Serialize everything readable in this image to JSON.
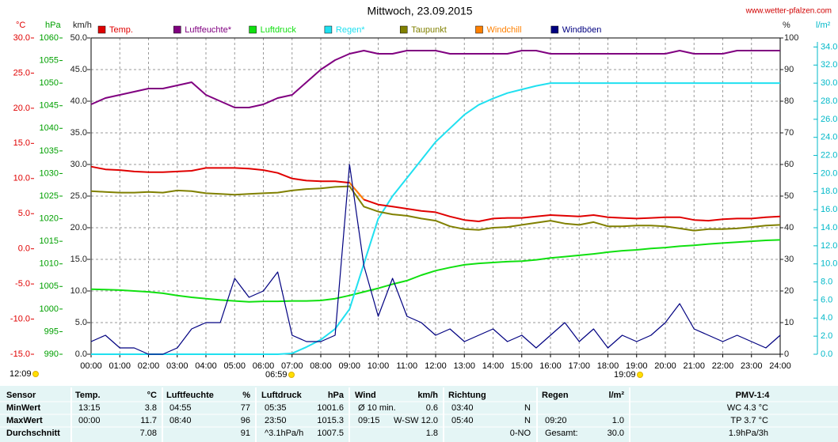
{
  "chart_data": {
    "type": "line",
    "title": "Mittwoch, 23.09.2015",
    "source": "www.wetter-pfalzen.com",
    "xlim": [
      0,
      24
    ],
    "xticks": [
      {
        "value": 0,
        "label": "00:00"
      },
      {
        "value": 1,
        "label": "01:00"
      },
      {
        "value": 2,
        "label": "02:00"
      },
      {
        "value": 3,
        "label": "03:00"
      },
      {
        "value": 4,
        "label": "04:00"
      },
      {
        "value": 5,
        "label": "05:00"
      },
      {
        "value": 6,
        "label": "06:00"
      },
      {
        "value": 7,
        "label": "07:00"
      },
      {
        "value": 8,
        "label": "08:00"
      },
      {
        "value": 9,
        "label": "09:00"
      },
      {
        "value": 10,
        "label": "10:00"
      },
      {
        "value": 11,
        "label": "11:00"
      },
      {
        "value": 12,
        "label": "12:00"
      },
      {
        "value": 13,
        "label": "13:00"
      },
      {
        "value": 14,
        "label": "14:00"
      },
      {
        "value": 15,
        "label": "15:00"
      },
      {
        "value": 16,
        "label": "16:00"
      },
      {
        "value": 17,
        "label": "17:00"
      },
      {
        "value": 18,
        "label": "18:00"
      },
      {
        "value": 19,
        "label": "19:00"
      },
      {
        "value": 20,
        "label": "20:00"
      },
      {
        "value": 21,
        "label": "21:00"
      },
      {
        "value": 22,
        "label": "22:00"
      },
      {
        "value": 23,
        "label": "23:00"
      },
      {
        "value": 24,
        "label": "24:00"
      }
    ],
    "grid": true,
    "y_axes": {
      "y": {
        "label": "°C",
        "color": "#e00000",
        "lim": [
          -15,
          30
        ],
        "ticks": [
          {
            "value": -15,
            "label": "-15.0"
          },
          {
            "value": -10,
            "label": "-10.0"
          },
          {
            "value": -5,
            "label": "-5.0"
          },
          {
            "value": 0,
            "label": "0.0"
          },
          {
            "value": 5,
            "label": "5.0"
          },
          {
            "value": 10,
            "label": "10.0"
          },
          {
            "value": 15,
            "label": "15.0"
          },
          {
            "value": 20,
            "label": "20.0"
          },
          {
            "value": 25,
            "label": "25.0"
          },
          {
            "value": 30,
            "label": "30.0"
          }
        ]
      },
      "y3": {
        "label": "hPa",
        "color": "#00a000",
        "lim": [
          990,
          1060
        ],
        "ticks": [
          990,
          995,
          1000,
          1005,
          1010,
          1015,
          1020,
          1025,
          1030,
          1035,
          1040,
          1045,
          1050,
          1055,
          1060
        ]
      },
      "y4": {
        "label": "km/h",
        "color": "#202020",
        "lim": [
          0,
          50
        ],
        "ticks": [
          {
            "value": 0,
            "label": "0.0"
          },
          {
            "value": 5,
            "label": "5.0"
          },
          {
            "value": 10,
            "label": "10.0"
          },
          {
            "value": 15,
            "label": "15.0"
          },
          {
            "value": 20,
            "label": "20.0"
          },
          {
            "value": 25,
            "label": "25.0"
          },
          {
            "value": 30,
            "label": "30.0"
          },
          {
            "value": 35,
            "label": "35.0"
          },
          {
            "value": 40,
            "label": "40.0"
          },
          {
            "value": 45,
            "label": "45.0"
          },
          {
            "value": 50,
            "label": "50.0"
          }
        ]
      },
      "y2": {
        "label": "%",
        "color": "#202020",
        "lim": [
          0,
          100
        ],
        "ticks": [
          0,
          10,
          20,
          30,
          40,
          50,
          60,
          70,
          80,
          90,
          100
        ]
      },
      "y5": {
        "label": "l/m²",
        "color": "#00b8c8",
        "lim": [
          0,
          35
        ],
        "ticks": [
          {
            "value": 0,
            "label": "0.0"
          },
          {
            "value": 2,
            "label": "2.0"
          },
          {
            "value": 4,
            "label": "4.0"
          },
          {
            "value": 6,
            "label": "6.0"
          },
          {
            "value": 8,
            "label": "8.0"
          },
          {
            "value": 10,
            "label": "10.0"
          },
          {
            "value": 12,
            "label": "12.0"
          },
          {
            "value": 14,
            "label": "14.0"
          },
          {
            "value": 16,
            "label": "16.0"
          },
          {
            "value": 18,
            "label": "18.0"
          },
          {
            "value": 20,
            "label": "20.0"
          },
          {
            "value": 22,
            "label": "22.0"
          },
          {
            "value": 24,
            "label": "24.0"
          },
          {
            "value": 26,
            "label": "26.0"
          },
          {
            "value": 28,
            "label": "28.0"
          },
          {
            "value": 30,
            "label": "30.0"
          },
          {
            "value": 32,
            "label": "32.0"
          },
          {
            "value": 34,
            "label": "34.0"
          }
        ]
      }
    },
    "x": [
      0,
      0.5,
      1,
      1.5,
      2,
      2.5,
      3,
      3.5,
      4,
      4.5,
      5,
      5.5,
      6,
      6.5,
      7,
      7.5,
      8,
      8.5,
      9,
      9.5,
      10,
      10.5,
      11,
      11.5,
      12,
      12.5,
      13,
      13.5,
      14,
      14.5,
      15,
      15.5,
      16,
      16.5,
      17,
      17.5,
      18,
      18.5,
      19,
      19.5,
      20,
      20.5,
      21,
      21.5,
      22,
      22.5,
      23,
      23.5,
      24
    ],
    "series": [
      {
        "name": "Temp.",
        "color": "#e00000",
        "axis": "y",
        "values": [
          11.7,
          11.3,
          11.2,
          11.0,
          10.9,
          10.9,
          11.0,
          11.1,
          11.5,
          11.5,
          11.5,
          11.4,
          11.2,
          10.8,
          10.0,
          9.7,
          9.6,
          9.6,
          9.4,
          7.0,
          6.3,
          6.0,
          5.7,
          5.4,
          5.2,
          4.6,
          4.1,
          3.9,
          4.3,
          4.4,
          4.4,
          4.6,
          4.8,
          4.7,
          4.6,
          4.8,
          4.5,
          4.4,
          4.3,
          4.4,
          4.5,
          4.5,
          4.1,
          4.0,
          4.2,
          4.3,
          4.3,
          4.5,
          4.6
        ]
      },
      {
        "name": "Luftfeuchte*",
        "color": "#800080",
        "axis": "y2",
        "values": [
          79,
          81,
          82,
          83,
          84,
          84,
          85,
          86,
          82,
          80,
          78,
          78,
          79,
          81,
          82,
          86,
          90,
          93,
          95,
          96,
          95,
          95,
          96,
          96,
          96,
          95,
          95,
          95,
          95,
          95,
          96,
          96,
          95,
          95,
          95,
          95,
          95,
          95,
          95,
          95,
          95,
          96,
          95,
          95,
          95,
          96,
          96,
          96,
          96
        ]
      },
      {
        "name": "Luftdruck",
        "color": "#10e010",
        "axis": "y3",
        "values": [
          1004.4,
          1004.3,
          1004.2,
          1004.0,
          1003.8,
          1003.5,
          1003.0,
          1002.6,
          1002.3,
          1002.0,
          1001.8,
          1001.6,
          1001.7,
          1001.7,
          1001.8,
          1001.8,
          1001.9,
          1002.3,
          1003.0,
          1003.8,
          1004.6,
          1005.5,
          1006.3,
          1007.5,
          1008.5,
          1009.2,
          1009.8,
          1010.1,
          1010.3,
          1010.5,
          1010.6,
          1010.9,
          1011.3,
          1011.6,
          1011.9,
          1012.2,
          1012.6,
          1012.9,
          1013.1,
          1013.4,
          1013.6,
          1013.9,
          1014.1,
          1014.4,
          1014.6,
          1014.8,
          1015.0,
          1015.2,
          1015.3
        ]
      },
      {
        "name": "Regen*",
        "color": "#20e0f0",
        "axis": "y5",
        "values": [
          0,
          0,
          0,
          0,
          0,
          0,
          0,
          0,
          0,
          0,
          0,
          0,
          0,
          0,
          0.1,
          0.8,
          1.6,
          2.8,
          5.0,
          10,
          15,
          17.5,
          19.5,
          21.5,
          23.5,
          25,
          26.5,
          27.6,
          28.3,
          28.9,
          29.3,
          29.7,
          30.0,
          30.0,
          30.0,
          30.0,
          30.0,
          30.0,
          30.0,
          30.0,
          30.0,
          30.0,
          30.0,
          30.0,
          30.0,
          30.0,
          30.0,
          30.0,
          30.0
        ]
      },
      {
        "name": "Taupunkt",
        "color": "#808000",
        "axis": "y",
        "values": [
          8.2,
          8.1,
          8.0,
          8.0,
          8.1,
          8.0,
          8.3,
          8.2,
          7.9,
          7.8,
          7.7,
          7.8,
          7.9,
          8.0,
          8.3,
          8.5,
          8.6,
          8.8,
          8.9,
          6.0,
          5.3,
          4.9,
          4.7,
          4.3,
          4.0,
          3.2,
          2.8,
          2.7,
          3.0,
          3.1,
          3.4,
          3.7,
          4.0,
          3.6,
          3.4,
          3.8,
          3.2,
          3.2,
          3.3,
          3.3,
          3.2,
          2.9,
          2.6,
          2.8,
          2.8,
          2.9,
          3.1,
          3.3,
          3.4
        ]
      },
      {
        "name": "Windchill",
        "color": "#ff8000",
        "axis": "y",
        "values": [
          null,
          null,
          null,
          null,
          null,
          null,
          null,
          null,
          null,
          null,
          null,
          null,
          null,
          null,
          null,
          null,
          null,
          null,
          9.4,
          7.0,
          null,
          null,
          null,
          null,
          null,
          null,
          null,
          null,
          null,
          null,
          null,
          null,
          null,
          null,
          null,
          null,
          null,
          null,
          null,
          null,
          null,
          null,
          null,
          null,
          null,
          null,
          null,
          null,
          null
        ]
      },
      {
        "name": "Windböen",
        "color": "#000080",
        "axis": "y4",
        "values": [
          2,
          3,
          1,
          1,
          0,
          0,
          1,
          4,
          5,
          5,
          12,
          9,
          10,
          13,
          3,
          2,
          2,
          3,
          30,
          14,
          6,
          12,
          6,
          5,
          3,
          4,
          2,
          3,
          4,
          2,
          3,
          1,
          3,
          5,
          2,
          4,
          1,
          3,
          2,
          3,
          5,
          8,
          4,
          3,
          2,
          3,
          2,
          1,
          3
        ]
      }
    ],
    "sun_times": [
      "12:09",
      "06:59",
      "19:09"
    ]
  },
  "table": {
    "header": [
      [
        "Sensor"
      ],
      [
        "Temp.",
        "°C"
      ],
      [
        "Luftfeuchte",
        "%"
      ],
      [
        "Luftdruck",
        "hPa"
      ],
      [
        "Wind",
        "km/h"
      ],
      [
        "Richtung"
      ],
      [
        "Regen",
        "l/m²"
      ],
      [
        "PMV-1:4"
      ]
    ],
    "rows": [
      {
        "label": "MinWert",
        "cells": [
          [
            "13:15",
            "3.8"
          ],
          [
            "04:55",
            "77"
          ],
          [
            "05:35",
            "1001.6"
          ],
          [
            "Ø 10 min.",
            "0.6"
          ],
          [
            "03:40",
            "N"
          ],
          [],
          [
            "WC 4.3 °C"
          ]
        ]
      },
      {
        "label": "MaxWert",
        "cells": [
          [
            "00:00",
            "11.7"
          ],
          [
            "08:40",
            "96"
          ],
          [
            "23:50",
            "1015.3"
          ],
          [
            "09:15",
            "W-SW 12.0"
          ],
          [
            "05:40",
            "N"
          ],
          [
            "09:20",
            "1.0"
          ],
          [
            "TP 3.7 °C"
          ]
        ]
      },
      {
        "label": "Durchschnitt",
        "cells": [
          [
            "7.08"
          ],
          [
            "91"
          ],
          [
            "^3.1hPa/h",
            "1007.5"
          ],
          [
            "1.8"
          ],
          [
            "0-NO"
          ],
          [
            "Gesamt:",
            "30.0"
          ],
          [
            "1.9hPa/3h"
          ]
        ]
      }
    ]
  }
}
